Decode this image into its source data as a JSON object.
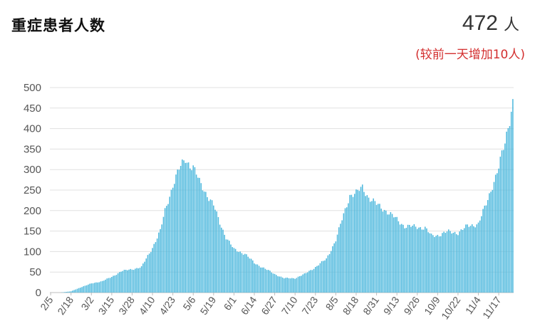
{
  "header": {
    "title": "重症患者人数",
    "count": "472",
    "unit": "人",
    "change": "(较前一天增加10人)"
  },
  "colors": {
    "bar": "#4db8dd",
    "grid": "#e0e0e0",
    "change_text": "#d32f2f"
  },
  "chart_data": {
    "type": "bar",
    "title": "重症患者人数",
    "ylim": [
      0,
      500
    ],
    "yticks": [
      0,
      50,
      100,
      150,
      200,
      250,
      300,
      350,
      400,
      450,
      500
    ],
    "grid": true,
    "x_tick_labels": [
      "2/5",
      "2/18",
      "3/2",
      "3/15",
      "3/28",
      "4/10",
      "4/23",
      "5/6",
      "5/19",
      "6/1",
      "6/14",
      "6/27",
      "7/10",
      "7/23",
      "8/5",
      "8/18",
      "8/31",
      "9/13",
      "9/26",
      "10/9",
      "10/22",
      "11/4",
      "11/17"
    ],
    "keyframes": [
      [
        "2/5",
        0
      ],
      [
        "2/11",
        0
      ],
      [
        "2/18",
        3
      ],
      [
        "2/25",
        14
      ],
      [
        "3/2",
        22
      ],
      [
        "3/9",
        28
      ],
      [
        "3/15",
        38
      ],
      [
        "3/21",
        52
      ],
      [
        "3/28",
        57
      ],
      [
        "4/3",
        62
      ],
      [
        "4/10",
        110
      ],
      [
        "4/15",
        150
      ],
      [
        "4/18",
        200
      ],
      [
        "4/23",
        262
      ],
      [
        "4/27",
        300
      ],
      [
        "5/1",
        328
      ],
      [
        "5/4",
        310
      ],
      [
        "5/6",
        305
      ],
      [
        "5/10",
        270
      ],
      [
        "5/15",
        238
      ],
      [
        "5/19",
        212
      ],
      [
        "5/23",
        170
      ],
      [
        "5/27",
        135
      ],
      [
        "6/1",
        105
      ],
      [
        "6/8",
        95
      ],
      [
        "6/14",
        72
      ],
      [
        "6/20",
        60
      ],
      [
        "6/27",
        45
      ],
      [
        "7/3",
        35
      ],
      [
        "7/10",
        35
      ],
      [
        "7/16",
        45
      ],
      [
        "7/23",
        62
      ],
      [
        "7/30",
        82
      ],
      [
        "8/5",
        128
      ],
      [
        "8/10",
        190
      ],
      [
        "8/14",
        238
      ],
      [
        "8/18",
        242
      ],
      [
        "8/22",
        257
      ],
      [
        "8/26",
        232
      ],
      [
        "8/31",
        215
      ],
      [
        "9/6",
        200
      ],
      [
        "9/13",
        178
      ],
      [
        "9/18",
        162
      ],
      [
        "9/26",
        160
      ],
      [
        "10/1",
        158
      ],
      [
        "10/5",
        138
      ],
      [
        "10/9",
        140
      ],
      [
        "10/15",
        148
      ],
      [
        "10/22",
        146
      ],
      [
        "10/28",
        162
      ],
      [
        "11/4",
        168
      ],
      [
        "11/9",
        215
      ],
      [
        "11/13",
        262
      ],
      [
        "11/17",
        305
      ],
      [
        "11/21",
        365
      ],
      [
        "11/24",
        425
      ],
      [
        "11/26",
        472
      ]
    ]
  }
}
